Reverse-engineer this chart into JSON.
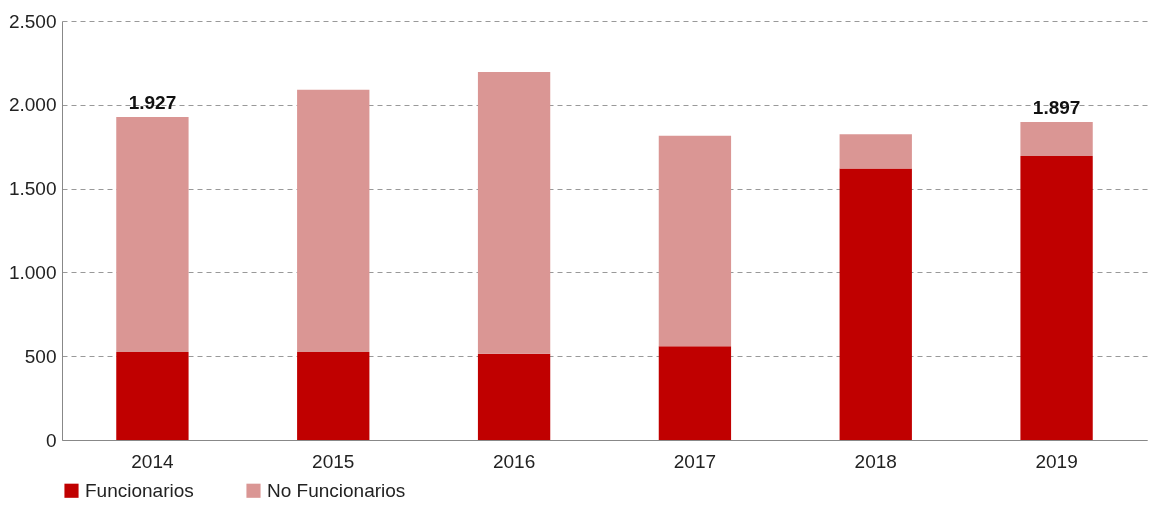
{
  "chart_data": {
    "type": "bar",
    "stacked": true,
    "categories": [
      "2014",
      "2015",
      "2016",
      "2017",
      "2018",
      "2019"
    ],
    "series": [
      {
        "name": "Funcionarios",
        "color": "#c00000",
        "values": [
          525,
          525,
          515,
          560,
          1620,
          1695
        ]
      },
      {
        "name": "No Funcionarios",
        "color": "#da9694",
        "values": [
          1402,
          1565,
          1680,
          1255,
          205,
          202
        ]
      }
    ],
    "totals": [
      "1.927",
      null,
      null,
      null,
      null,
      "1.897"
    ],
    "ylim": [
      0,
      2500
    ],
    "yticks": [
      0,
      500,
      {
        "value": 1000,
        "label": "1.000"
      },
      {
        "value": 1500,
        "label": "1.500"
      },
      {
        "value": 2000,
        "label": "2.000"
      },
      {
        "value": 2500,
        "label": "2.500"
      }
    ],
    "grid": "y",
    "legend": "bottom"
  }
}
